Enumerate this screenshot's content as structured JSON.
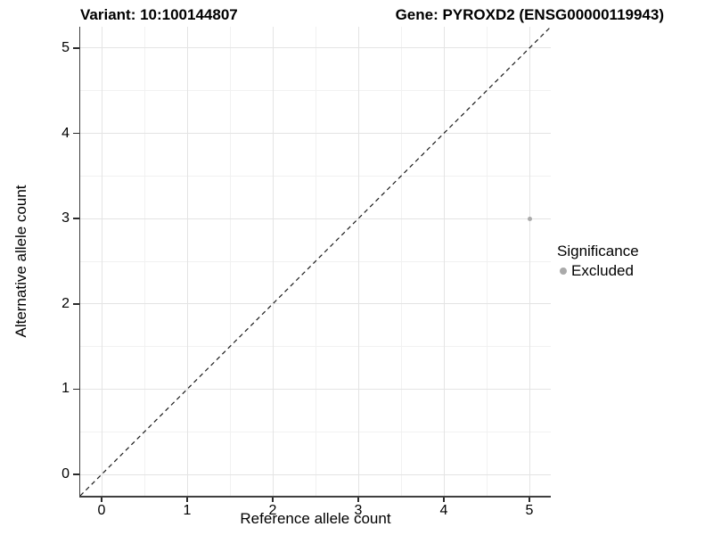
{
  "chart_data": {
    "type": "scatter",
    "title_left": "Variant: 10:100144807",
    "title_right": "Gene: PYROXD2 (ENSG00000119943)",
    "xlabel": "Reference allele count",
    "ylabel": "Alternative allele count",
    "xlim": [
      -0.25,
      5.25
    ],
    "ylim": [
      -0.25,
      5.25
    ],
    "x_ticks": [
      0,
      1,
      2,
      3,
      4,
      5
    ],
    "y_ticks": [
      0,
      1,
      2,
      3,
      4,
      5
    ],
    "x_minor_ticks": [
      0.5,
      1.5,
      2.5,
      3.5,
      4.5
    ],
    "y_minor_ticks": [
      0.5,
      1.5,
      2.5,
      3.5,
      4.5
    ],
    "grid": true,
    "series": [
      {
        "name": "Excluded",
        "color": "#aaaaaa",
        "points": [
          {
            "x": 5,
            "y": 3
          }
        ]
      }
    ],
    "reference_line": {
      "type": "identity",
      "style": "dashed",
      "color": "#1a1a1a"
    },
    "legend": {
      "title": "Significance",
      "position": "right",
      "items": [
        {
          "label": "Excluded",
          "color": "#aaaaaa"
        }
      ]
    }
  },
  "colors": {
    "background": "#ffffff",
    "grid_major": "#e4e4e4",
    "grid_minor": "#f1f1f1",
    "axis_line": "#3f3f3f",
    "text": "#000000",
    "point_gray": "#aaaaaa"
  }
}
